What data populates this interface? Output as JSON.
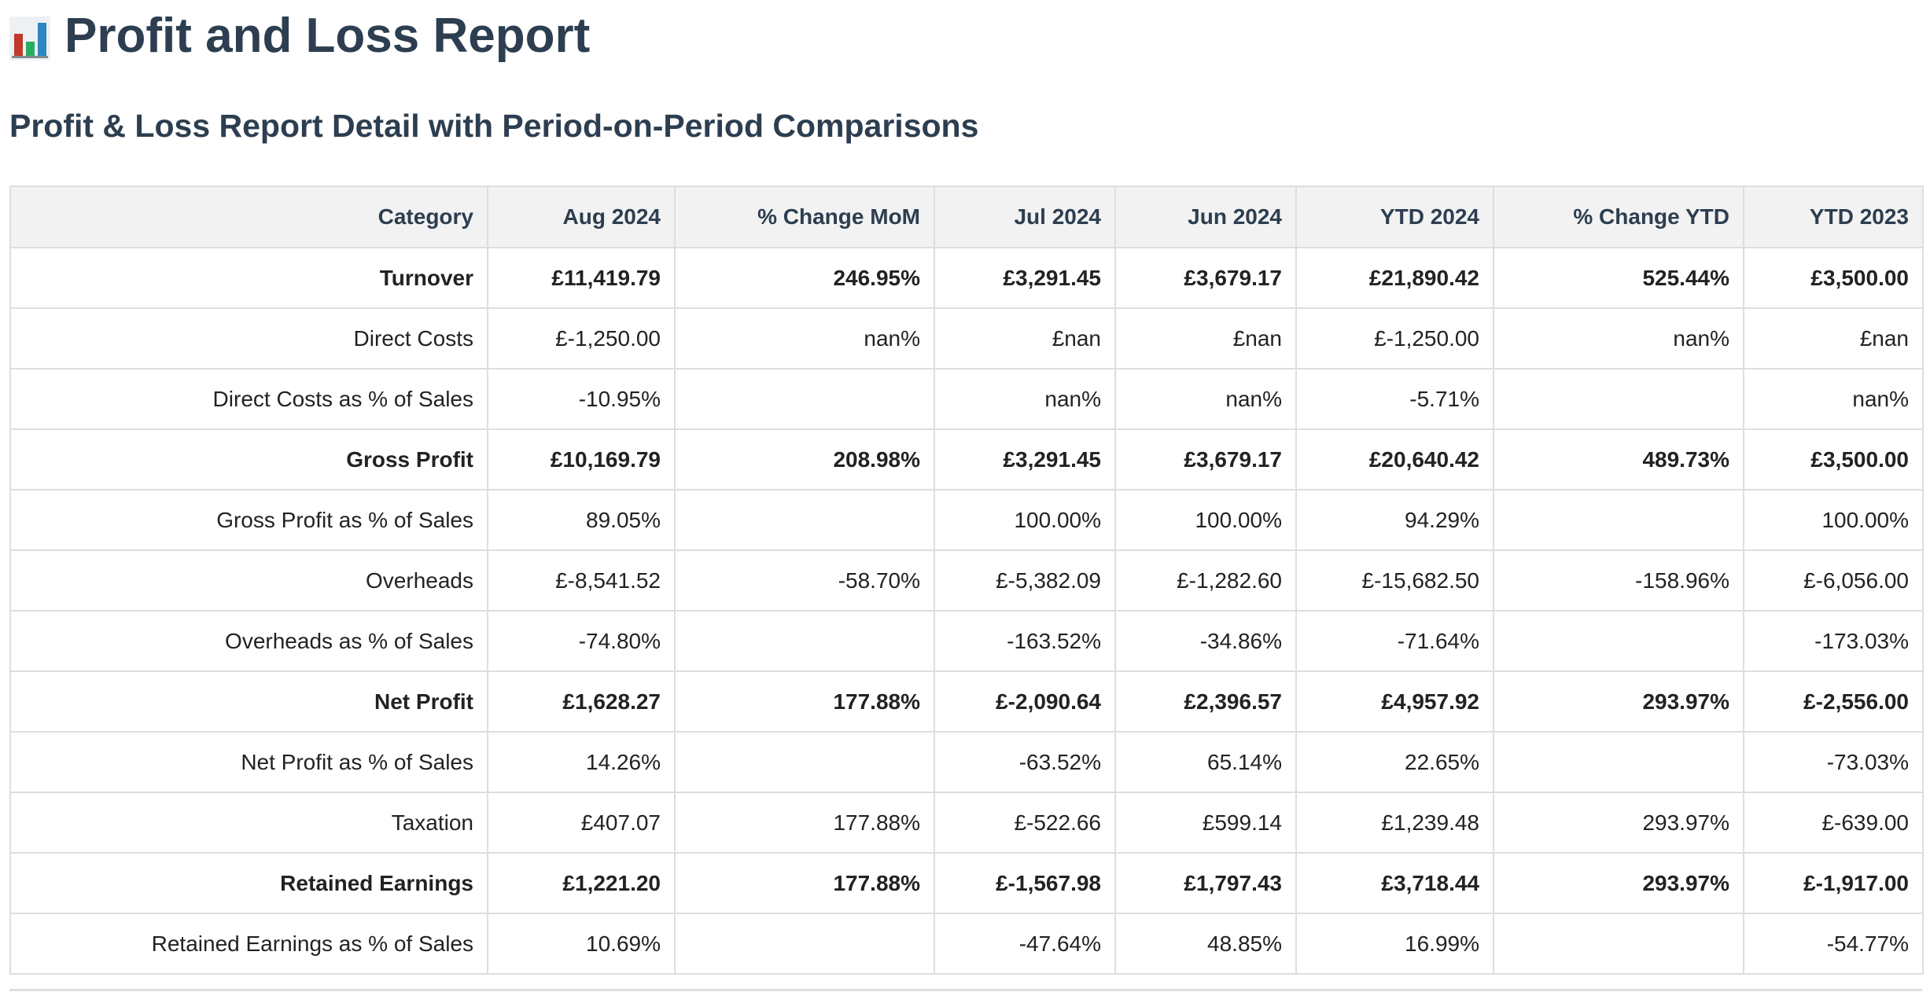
{
  "header": {
    "title": "Profit and Loss Report",
    "subtitle": "Profit & Loss Report Detail with Period-on-Period Comparisons",
    "icon": "bar-chart-icon"
  },
  "colors": {
    "heading": "#2c3e50",
    "header_bg": "#f2f2f2",
    "border": "#dedede",
    "icon_bar_red": "#c0392b",
    "icon_bar_green": "#27ae60",
    "icon_bar_blue": "#2e86c1"
  },
  "table": {
    "columns": [
      "Category",
      "Aug 2024",
      "% Change MoM",
      "Jul 2024",
      "Jun 2024",
      "YTD 2024",
      "% Change YTD",
      "YTD 2023"
    ],
    "rows": [
      {
        "bold": true,
        "cells": [
          "Turnover",
          "£11,419.79",
          "246.95%",
          "£3,291.45",
          "£3,679.17",
          "£21,890.42",
          "525.44%",
          "£3,500.00"
        ]
      },
      {
        "bold": false,
        "cells": [
          "Direct Costs",
          "£-1,250.00",
          "nan%",
          "£nan",
          "£nan",
          "£-1,250.00",
          "nan%",
          "£nan"
        ]
      },
      {
        "bold": false,
        "cells": [
          "Direct Costs as % of Sales",
          "-10.95%",
          "",
          "nan%",
          "nan%",
          "-5.71%",
          "",
          "nan%"
        ]
      },
      {
        "bold": true,
        "cells": [
          "Gross Profit",
          "£10,169.79",
          "208.98%",
          "£3,291.45",
          "£3,679.17",
          "£20,640.42",
          "489.73%",
          "£3,500.00"
        ]
      },
      {
        "bold": false,
        "cells": [
          "Gross Profit as % of Sales",
          "89.05%",
          "",
          "100.00%",
          "100.00%",
          "94.29%",
          "",
          "100.00%"
        ]
      },
      {
        "bold": false,
        "cells": [
          "Overheads",
          "£-8,541.52",
          "-58.70%",
          "£-5,382.09",
          "£-1,282.60",
          "£-15,682.50",
          "-158.96%",
          "£-6,056.00"
        ]
      },
      {
        "bold": false,
        "cells": [
          "Overheads as % of Sales",
          "-74.80%",
          "",
          "-163.52%",
          "-34.86%",
          "-71.64%",
          "",
          "-173.03%"
        ]
      },
      {
        "bold": true,
        "cells": [
          "Net Profit",
          "£1,628.27",
          "177.88%",
          "£-2,090.64",
          "£2,396.57",
          "£4,957.92",
          "293.97%",
          "£-2,556.00"
        ]
      },
      {
        "bold": false,
        "cells": [
          "Net Profit as % of Sales",
          "14.26%",
          "",
          "-63.52%",
          "65.14%",
          "22.65%",
          "",
          "-73.03%"
        ]
      },
      {
        "bold": false,
        "cells": [
          "Taxation",
          "£407.07",
          "177.88%",
          "£-522.66",
          "£599.14",
          "£1,239.48",
          "293.97%",
          "£-639.00"
        ]
      },
      {
        "bold": true,
        "cells": [
          "Retained Earnings",
          "£1,221.20",
          "177.88%",
          "£-1,567.98",
          "£1,797.43",
          "£3,718.44",
          "293.97%",
          "£-1,917.00"
        ]
      },
      {
        "bold": false,
        "cells": [
          "Retained Earnings as % of Sales",
          "10.69%",
          "",
          "-47.64%",
          "48.85%",
          "16.99%",
          "",
          "-54.77%"
        ]
      }
    ]
  }
}
